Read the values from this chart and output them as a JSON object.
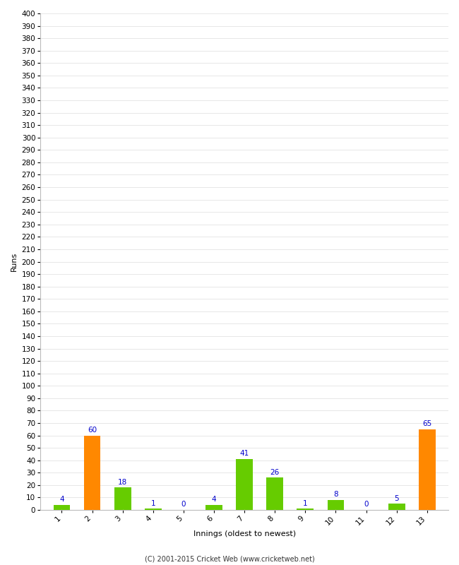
{
  "xlabel": "Innings (oldest to newest)",
  "ylabel": "Runs",
  "categories": [
    1,
    2,
    3,
    4,
    5,
    6,
    7,
    8,
    9,
    10,
    11,
    12,
    13
  ],
  "values": [
    4,
    60,
    18,
    1,
    0,
    4,
    41,
    26,
    1,
    8,
    0,
    5,
    65
  ],
  "bar_colors": [
    "#66cc00",
    "#ff8800",
    "#66cc00",
    "#66cc00",
    "#66cc00",
    "#66cc00",
    "#66cc00",
    "#66cc00",
    "#66cc00",
    "#66cc00",
    "#66cc00",
    "#66cc00",
    "#ff8800"
  ],
  "label_color": "#0000cc",
  "ylim": [
    0,
    400
  ],
  "ytick_step": 10,
  "background_color": "#ffffff",
  "grid_color": "#dddddd",
  "footer": "(C) 2001-2015 Cricket Web (www.cricketweb.net)",
  "label_fontsize": 7.5,
  "axis_tick_fontsize": 7.5,
  "xlabel_fontsize": 8,
  "ylabel_fontsize": 8,
  "footer_fontsize": 7,
  "bar_width": 0.55
}
